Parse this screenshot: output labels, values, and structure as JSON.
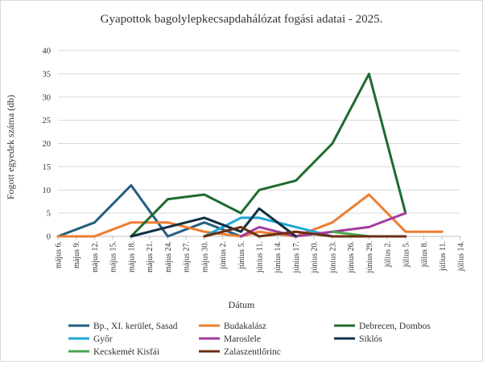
{
  "chart_data": {
    "type": "line",
    "title": "Gyapottok bagolylepkecsapdahálózat fogási adatai - 2025.",
    "xlabel": "Dátum",
    "ylabel": "Fogott egyedek száma (db)",
    "ylim": [
      0,
      40
    ],
    "yticks": [
      0,
      5,
      10,
      15,
      20,
      25,
      30,
      35,
      40
    ],
    "grid": "horizontal",
    "legend_position": "bottom",
    "categories": [
      "május 6.",
      "május 9.",
      "május 12.",
      "május 15.",
      "május 18.",
      "május 21.",
      "május 24.",
      "május 27.",
      "május 30.",
      "június 2.",
      "június 5.",
      "június 11.",
      "június 14.",
      "június 17.",
      "június 20.",
      "június 23.",
      "június 26.",
      "június 29.",
      "július 2.",
      "július 5.",
      "július 8.",
      "július 11.",
      "július 14."
    ],
    "x_values": [
      "május 6.",
      "május 12.",
      "május 18.",
      "május 24.",
      "május 30.",
      "június 5.",
      "június 11.",
      "június 17.",
      "június 23.",
      "június 29.",
      "július 5.",
      "július 11.",
      "július 14."
    ],
    "series": [
      {
        "name": "Bp., XI. kerület, Sasad",
        "color": "#255e7e",
        "values": [
          0,
          3,
          11,
          0,
          3,
          0,
          null,
          null,
          null,
          null,
          null,
          null,
          null
        ]
      },
      {
        "name": "Budakalász",
        "color": "#ed7d31",
        "values": [
          0,
          0,
          3,
          3,
          1,
          0,
          1,
          0,
          3,
          9,
          1,
          1,
          null
        ]
      },
      {
        "name": "Debrecen, Dombos",
        "color": "#1e6b2e",
        "values": [
          null,
          null,
          0,
          8,
          9,
          5,
          10,
          12,
          20,
          35,
          5,
          null,
          null
        ]
      },
      {
        "name": "Győr",
        "color": "#1ea5d6",
        "values": [
          null,
          null,
          null,
          null,
          0,
          4,
          4,
          2,
          0,
          null,
          null,
          null,
          null
        ]
      },
      {
        "name": "Maroslele",
        "color": "#a33b9c",
        "values": [
          null,
          null,
          null,
          null,
          null,
          0,
          2,
          0,
          1,
          2,
          5,
          null,
          null
        ]
      },
      {
        "name": "Siklós",
        "color": "#0f2f44",
        "values": [
          null,
          null,
          0,
          2,
          4,
          1,
          6,
          0,
          null,
          null,
          null,
          null,
          null
        ]
      },
      {
        "name": "Kecskemét Kisfái",
        "color": "#4aa74c",
        "values": [
          null,
          null,
          null,
          null,
          null,
          null,
          null,
          null,
          1,
          0,
          null,
          null,
          null
        ]
      },
      {
        "name": "Zalaszentlőrinc",
        "color": "#6b2e12",
        "values": [
          null,
          null,
          null,
          null,
          0,
          2,
          0,
          1,
          0,
          0,
          0,
          null,
          null
        ]
      }
    ]
  }
}
